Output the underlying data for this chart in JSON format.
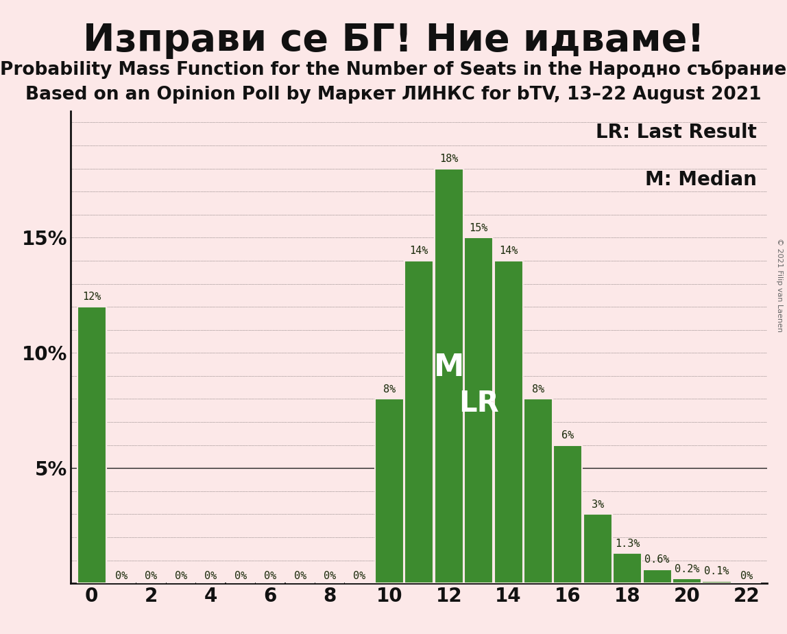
{
  "title_main": "Изправи се БГ! Ние идваме!",
  "subtitle1": "Probability Mass Function for the Number of Seats in the Народно събрание",
  "subtitle2": "Based on an Opinion Poll by Маркет ЛИНКС for bTV, 13–22 August 2021",
  "copyright": "© 2021 Filip van Laenen",
  "background_color": "#fce8e8",
  "bar_color": "#3d8b2f",
  "bar_edge_color": "#fce8e8",
  "seats": [
    0,
    1,
    2,
    3,
    4,
    5,
    6,
    7,
    8,
    9,
    10,
    11,
    12,
    13,
    14,
    15,
    16,
    17,
    18,
    19,
    20,
    21,
    22
  ],
  "values": [
    0.12,
    0.0,
    0.0,
    0.0,
    0.0,
    0.0,
    0.0,
    0.0,
    0.0,
    0.0,
    0.08,
    0.14,
    0.18,
    0.15,
    0.14,
    0.08,
    0.06,
    0.03,
    0.013,
    0.006,
    0.002,
    0.001,
    0.0
  ],
  "labels": [
    "12%",
    "0%",
    "0%",
    "0%",
    "0%",
    "0%",
    "0%",
    "0%",
    "0%",
    "0%",
    "8%",
    "14%",
    "18%",
    "15%",
    "14%",
    "8%",
    "6%",
    "3%",
    "1.3%",
    "0.6%",
    "0.2%",
    "0.1%",
    "0%"
  ],
  "zero_label_seats": [
    1,
    2,
    3,
    4,
    5,
    6,
    7,
    8,
    9
  ],
  "median_bar": 12,
  "lr_bar": 13,
  "legend_lr": "LR: Last Result",
  "legend_m": "M: Median",
  "ytick_vals": [
    0.0,
    0.05,
    0.1,
    0.15
  ],
  "ytick_labels": [
    "",
    "5%",
    "10%",
    "15%"
  ],
  "xticks": [
    0,
    2,
    4,
    6,
    8,
    10,
    12,
    14,
    16,
    18,
    20,
    22
  ],
  "ymax": 0.205,
  "title_fontsize": 40,
  "subtitle_fontsize": 19,
  "label_fontsize": 11,
  "axis_fontsize": 20,
  "legend_fontsize": 20,
  "inside_label_fontsize": 32
}
